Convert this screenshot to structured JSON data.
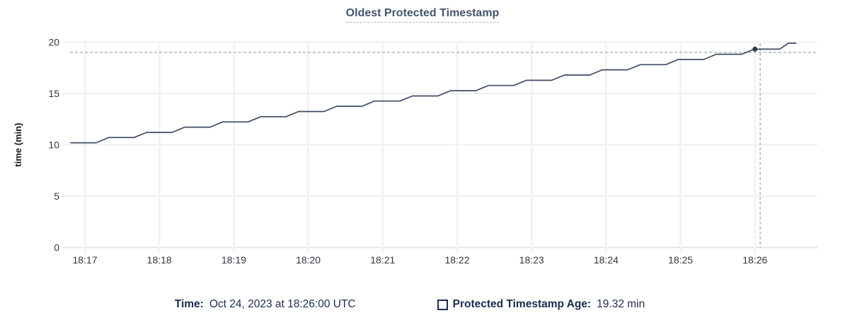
{
  "title": "Oldest Protected Timestamp",
  "tooltip": {
    "time_label": "Time:",
    "time_value": "Oct 24, 2023 at 18:26:00 UTC",
    "series_label": "Protected Timestamp Age:",
    "series_value": "19.32 min"
  },
  "colors": {
    "line": "#3f4c63",
    "dot": "#2c3a52",
    "title_text": "#44546e",
    "legend_text": "#1b2b4e",
    "grid_horizontal": "#f0f0f0",
    "grid_vertical": "#f3f3f3",
    "axis_zero_line": "#e4e4e4",
    "tick_text": "#33373d",
    "crosshair": "#a6b8c1",
    "title_underline": "#aab6c3"
  },
  "chart_data": {
    "type": "line",
    "title": "Oldest Protected Timestamp",
    "xlabel": "",
    "ylabel": "time (min)",
    "ylim": [
      0,
      20
    ],
    "y_ticks": [
      0,
      5,
      10,
      15,
      20
    ],
    "x_ticks": [
      "18:17",
      "18:18",
      "18:19",
      "18:20",
      "18:21",
      "18:22",
      "18:23",
      "18:24",
      "18:25",
      "18:26"
    ],
    "x_unit": "point x = clock minutes after 18:00 UTC",
    "grid": true,
    "legend_position": "bottom",
    "series": [
      {
        "name": "Protected Timestamp Age",
        "points": [
          [
            16.81,
            10.2
          ],
          [
            17.15,
            10.2
          ],
          [
            17.32,
            10.71
          ],
          [
            17.66,
            10.71
          ],
          [
            17.83,
            11.21
          ],
          [
            18.17,
            11.21
          ],
          [
            18.34,
            11.72
          ],
          [
            18.68,
            11.72
          ],
          [
            18.85,
            12.23
          ],
          [
            19.19,
            12.23
          ],
          [
            19.36,
            12.74
          ],
          [
            19.7,
            12.74
          ],
          [
            19.87,
            13.24
          ],
          [
            20.21,
            13.24
          ],
          [
            20.38,
            13.75
          ],
          [
            20.72,
            13.75
          ],
          [
            20.89,
            14.26
          ],
          [
            21.23,
            14.26
          ],
          [
            21.4,
            14.76
          ],
          [
            21.74,
            14.76
          ],
          [
            21.91,
            15.27
          ],
          [
            22.25,
            15.27
          ],
          [
            22.42,
            15.78
          ],
          [
            22.76,
            15.78
          ],
          [
            22.93,
            16.28
          ],
          [
            23.27,
            16.28
          ],
          [
            23.44,
            16.79
          ],
          [
            23.78,
            16.79
          ],
          [
            23.95,
            17.3
          ],
          [
            24.29,
            17.3
          ],
          [
            24.46,
            17.81
          ],
          [
            24.8,
            17.81
          ],
          [
            24.97,
            18.31
          ],
          [
            25.31,
            18.31
          ],
          [
            25.48,
            18.82
          ],
          [
            25.82,
            18.82
          ],
          [
            25.99,
            19.32
          ],
          [
            26.33,
            19.32
          ],
          [
            26.45,
            19.9
          ],
          [
            26.55,
            19.9
          ]
        ]
      }
    ],
    "hover": {
      "time": "18:26:00",
      "time_min": 26.0,
      "value_min": 19.32,
      "cursor_time_min": 26.07,
      "cursor_value_min": 19.0
    }
  }
}
